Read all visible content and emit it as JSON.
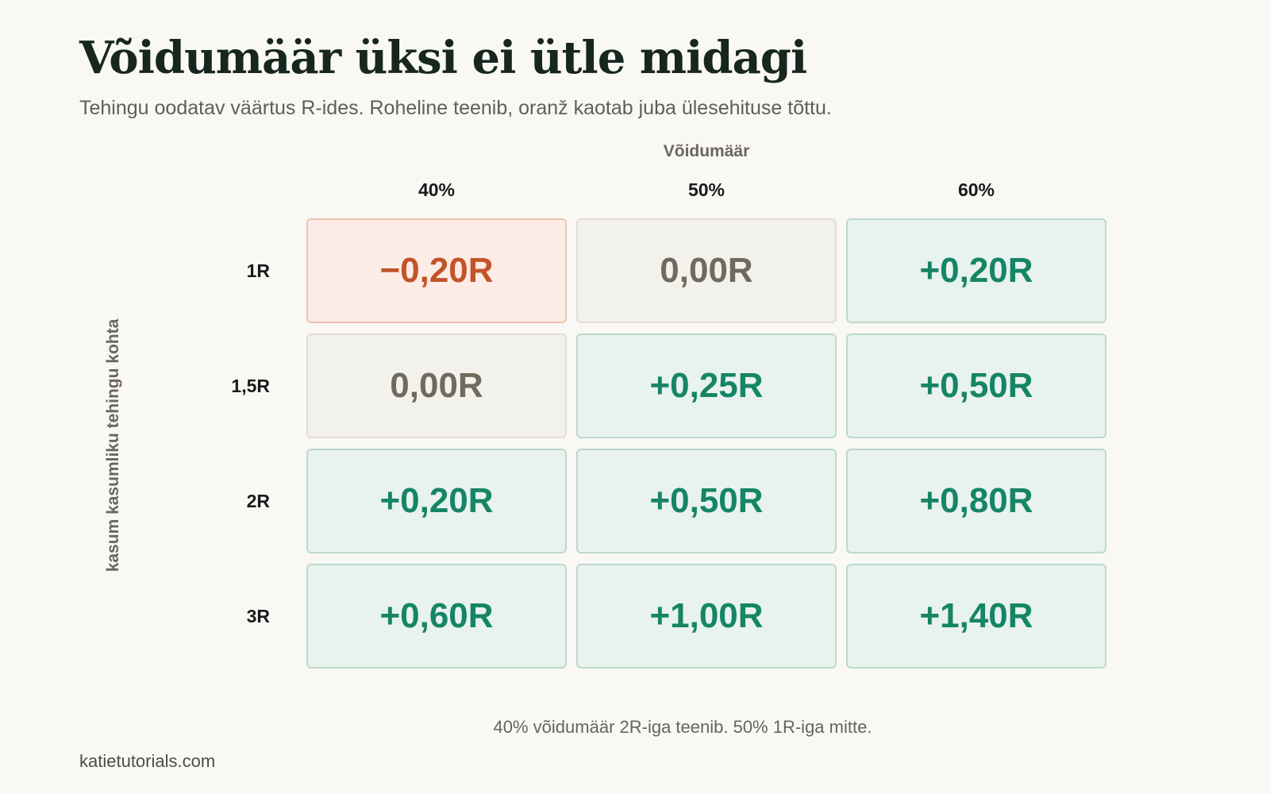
{
  "header": {
    "title": "Võidumäär üksi ei ütle midagi",
    "subtitle": "Tehingu oodatav väärtus R-ides. Roheline teenib, oranž kaotab juba ülesehituse tõttu."
  },
  "chart_data": {
    "type": "heatmap",
    "xlabel": "Võidumäär",
    "ylabel": "kasum kasumliku tehingu kohta",
    "x_categories": [
      "40%",
      "50%",
      "60%"
    ],
    "y_categories": [
      "1R",
      "1,5R",
      "2R",
      "3R"
    ],
    "values": [
      [
        -0.2,
        0.0,
        0.2
      ],
      [
        0.0,
        0.25,
        0.5
      ],
      [
        0.2,
        0.5,
        0.8
      ],
      [
        0.6,
        1.0,
        1.4
      ]
    ],
    "labels": [
      [
        "−0,20R",
        "0,00R",
        "+0,20R"
      ],
      [
        "0,00R",
        "+0,25R",
        "+0,50R"
      ],
      [
        "+0,20R",
        "+0,50R",
        "+0,80R"
      ],
      [
        "+0,60R",
        "+1,00R",
        "+1,40R"
      ]
    ],
    "colors": {
      "negative": "#c2542a",
      "zero": "#6f6a5e",
      "positive": "#158565"
    }
  },
  "footnote": "40% võidumäär 2R-iga teenib. 50% 1R-iga mitte.",
  "source": "katietutorials.com"
}
